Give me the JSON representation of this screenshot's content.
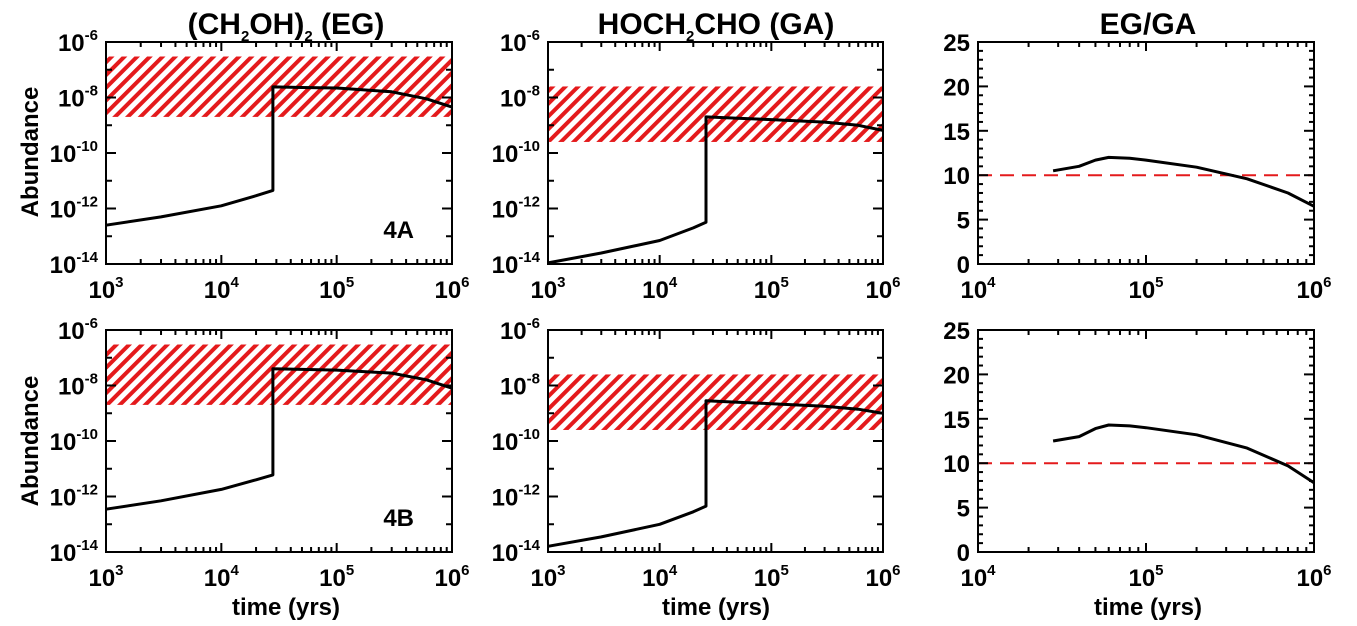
{
  "titles": {
    "col1": {
      "pre": "(CH",
      "sub1": "2",
      "mid": "OH)",
      "sub2": "2",
      "post": " (EG)"
    },
    "col2": {
      "pre": "HOCH",
      "sub1": "2",
      "post": "CHO (GA)"
    },
    "col3": {
      "text": "EG/GA"
    }
  },
  "axis_labels": {
    "y_abundance": "Abundance",
    "x_time": "time (yrs)"
  },
  "tick_base": "10",
  "chart_data": [
    {
      "type": "line",
      "id": "eg_4A",
      "annotation": "4A",
      "x_scale": "log",
      "y_scale": "log",
      "xlim": [
        1000,
        1000000
      ],
      "ylim": [
        1e-14,
        1e-06
      ],
      "x_ticks_exp": [
        3,
        4,
        5,
        6
      ],
      "y_ticks_exp": [
        -14,
        -12,
        -10,
        -8,
        -6
      ],
      "observed_range": [
        2e-09,
        3e-07
      ],
      "observed_color": "#e41a1c",
      "series": [
        {
          "color": "#000000",
          "points": [
            [
              1000,
              2.5e-13
            ],
            [
              3000,
              5e-13
            ],
            [
              10000,
              1.25e-12
            ],
            [
              20000,
              2.9e-12
            ],
            [
              28000,
              4.5e-12
            ],
            [
              28000,
              2.4e-08
            ],
            [
              50000,
              2.3e-08
            ],
            [
              100000,
              2.2e-08
            ],
            [
              300000,
              1.6e-08
            ],
            [
              600000,
              9e-09
            ],
            [
              1000000,
              4.5e-09
            ]
          ]
        }
      ]
    },
    {
      "type": "line",
      "id": "ga_4A",
      "x_scale": "log",
      "y_scale": "log",
      "xlim": [
        1000,
        1000000
      ],
      "ylim": [
        1e-14,
        1e-06
      ],
      "x_ticks_exp": [
        3,
        4,
        5,
        6
      ],
      "y_ticks_exp": [
        -14,
        -12,
        -10,
        -8,
        -6
      ],
      "observed_range": [
        2.5e-10,
        2.5e-08
      ],
      "observed_color": "#e41a1c",
      "series": [
        {
          "color": "#000000",
          "points": [
            [
              1000,
              1.1e-14
            ],
            [
              3000,
              2.5e-14
            ],
            [
              10000,
              7e-14
            ],
            [
              20000,
              2e-13
            ],
            [
              26000,
              3.2e-13
            ],
            [
              26000,
              2e-09
            ],
            [
              50000,
              1.8e-09
            ],
            [
              100000,
              1.6e-09
            ],
            [
              300000,
              1.3e-09
            ],
            [
              600000,
              1e-09
            ],
            [
              1000000,
              6.5e-10
            ]
          ]
        }
      ]
    },
    {
      "type": "line",
      "id": "ratio_4A",
      "x_scale": "log",
      "y_scale": "linear",
      "xlim": [
        10000,
        1000000
      ],
      "ylim": [
        0,
        25
      ],
      "x_ticks_exp": [
        4,
        5,
        6
      ],
      "y_ticks": [
        0,
        5,
        10,
        15,
        20,
        25
      ],
      "reference_line": 10,
      "reference_color": "#e41a1c",
      "series": [
        {
          "color": "#000000",
          "points": [
            [
              28000,
              10.5
            ],
            [
              40000,
              11
            ],
            [
              50000,
              11.7
            ],
            [
              60000,
              12
            ],
            [
              80000,
              11.9
            ],
            [
              100000,
              11.7
            ],
            [
              200000,
              10.9
            ],
            [
              400000,
              9.6
            ],
            [
              700000,
              8
            ],
            [
              1000000,
              6.5
            ]
          ]
        }
      ]
    },
    {
      "type": "line",
      "id": "eg_4B",
      "annotation": "4B",
      "x_scale": "log",
      "y_scale": "log",
      "xlim": [
        1000,
        1000000
      ],
      "ylim": [
        1e-14,
        1e-06
      ],
      "x_ticks_exp": [
        3,
        4,
        5,
        6
      ],
      "y_ticks_exp": [
        -14,
        -12,
        -10,
        -8,
        -6
      ],
      "observed_range": [
        2e-09,
        3e-07
      ],
      "observed_color": "#e41a1c",
      "series": [
        {
          "color": "#000000",
          "points": [
            [
              1000,
              3.5e-13
            ],
            [
              3000,
              7e-13
            ],
            [
              10000,
              1.8e-12
            ],
            [
              20000,
              4e-12
            ],
            [
              28000,
              6e-12
            ],
            [
              28000,
              4e-08
            ],
            [
              50000,
              3.8e-08
            ],
            [
              100000,
              3.6e-08
            ],
            [
              300000,
              2.8e-08
            ],
            [
              600000,
              1.6e-08
            ],
            [
              1000000,
              8e-09
            ]
          ]
        }
      ]
    },
    {
      "type": "line",
      "id": "ga_4B",
      "x_scale": "log",
      "y_scale": "log",
      "xlim": [
        1000,
        1000000
      ],
      "ylim": [
        1e-14,
        1e-06
      ],
      "x_ticks_exp": [
        3,
        4,
        5,
        6
      ],
      "y_ticks_exp": [
        -14,
        -12,
        -10,
        -8,
        -6
      ],
      "observed_range": [
        2.5e-10,
        2.5e-08
      ],
      "observed_color": "#e41a1c",
      "series": [
        {
          "color": "#000000",
          "points": [
            [
              1000,
              1.6e-14
            ],
            [
              3000,
              3.5e-14
            ],
            [
              10000,
              1e-13
            ],
            [
              20000,
              2.8e-13
            ],
            [
              26000,
              4.5e-13
            ],
            [
              26000,
              2.8e-09
            ],
            [
              50000,
              2.5e-09
            ],
            [
              100000,
              2.2e-09
            ],
            [
              300000,
              1.8e-09
            ],
            [
              600000,
              1.4e-09
            ],
            [
              1000000,
              1e-09
            ]
          ]
        }
      ]
    },
    {
      "type": "line",
      "id": "ratio_4B",
      "x_scale": "log",
      "y_scale": "linear",
      "xlim": [
        10000,
        1000000
      ],
      "ylim": [
        0,
        25
      ],
      "x_ticks_exp": [
        4,
        5,
        6
      ],
      "y_ticks": [
        0,
        5,
        10,
        15,
        20,
        25
      ],
      "reference_line": 10,
      "reference_color": "#e41a1c",
      "series": [
        {
          "color": "#000000",
          "points": [
            [
              28000,
              12.5
            ],
            [
              40000,
              13
            ],
            [
              50000,
              13.9
            ],
            [
              60000,
              14.3
            ],
            [
              80000,
              14.2
            ],
            [
              100000,
              14
            ],
            [
              200000,
              13.2
            ],
            [
              400000,
              11.7
            ],
            [
              700000,
              9.7
            ],
            [
              1000000,
              7.8
            ]
          ]
        }
      ]
    }
  ]
}
